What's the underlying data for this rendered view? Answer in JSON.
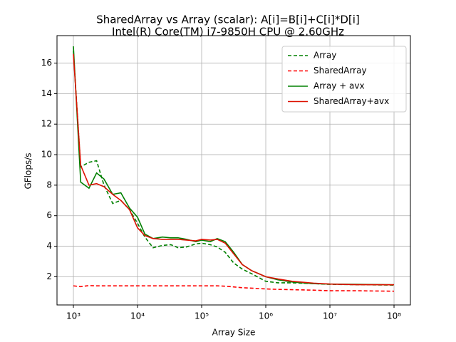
{
  "chart_data": {
    "type": "line",
    "title": "SharedArray vs Array (scalar): A[i]=B[i]+C[i]*D[i]",
    "subtitle": "Intel(R) Core(TM) i7-9850H CPU @ 2.60GHz",
    "x_label": "Array Size",
    "y_label": "GFlops/s",
    "x": [
      1000,
      1300,
      1750,
      2300,
      3000,
      4100,
      5500,
      7500,
      10000,
      13000,
      17500,
      24500,
      33000,
      43000,
      58000,
      81000,
      100000,
      136000,
      175000,
      233000,
      316000,
      430000,
      600000,
      1000000,
      1550000,
      2580000,
      5550000,
      10000000,
      25800000,
      100000000
    ],
    "series": [
      {
        "name": "Array",
        "color": "#008000",
        "dash": true,
        "values": [
          16.8,
          9.2,
          9.5,
          9.6,
          8.0,
          6.8,
          7.0,
          6.4,
          5.5,
          4.6,
          3.9,
          4.05,
          4.1,
          3.9,
          3.95,
          4.15,
          4.2,
          4.1,
          3.95,
          3.6,
          2.9,
          2.5,
          2.2,
          1.7,
          1.6,
          1.6,
          1.55,
          1.5,
          1.48,
          1.45
        ]
      },
      {
        "name": "SharedArray",
        "color": "#ff0000",
        "dash": true,
        "values": [
          1.4,
          1.35,
          1.42,
          1.4,
          1.4,
          1.4,
          1.4,
          1.4,
          1.4,
          1.4,
          1.4,
          1.4,
          1.4,
          1.4,
          1.4,
          1.4,
          1.4,
          1.4,
          1.4,
          1.38,
          1.33,
          1.28,
          1.25,
          1.2,
          1.17,
          1.15,
          1.12,
          1.08,
          1.08,
          1.05
        ]
      },
      {
        "name": "Array + avx",
        "color": "#008000",
        "dash": false,
        "values": [
          17.1,
          8.2,
          7.8,
          8.8,
          8.4,
          7.4,
          7.5,
          6.5,
          5.9,
          4.8,
          4.5,
          4.6,
          4.55,
          4.55,
          4.45,
          4.3,
          4.4,
          4.3,
          4.5,
          4.3,
          3.6,
          2.8,
          2.4,
          2.0,
          1.8,
          1.65,
          1.55,
          1.52,
          1.5,
          1.47
        ]
      },
      {
        "name": "SharedArray+avx",
        "color": "#dd1100",
        "dash": false,
        "values": [
          16.6,
          9.3,
          8.0,
          8.1,
          7.9,
          7.4,
          7.0,
          6.4,
          5.2,
          4.7,
          4.5,
          4.45,
          4.45,
          4.45,
          4.4,
          4.35,
          4.45,
          4.4,
          4.45,
          4.2,
          3.5,
          2.8,
          2.4,
          2.0,
          1.85,
          1.7,
          1.58,
          1.52,
          1.48,
          1.47
        ]
      }
    ],
    "x_log": true,
    "xlim": [
      555,
      180000000
    ],
    "xticks": [
      {
        "value": 1000,
        "label": "10³"
      },
      {
        "value": 10000,
        "label": "10⁴"
      },
      {
        "value": 100000,
        "label": "10⁵"
      },
      {
        "value": 1000000,
        "label": "10⁶"
      },
      {
        "value": 10000000,
        "label": "10⁷"
      },
      {
        "value": 100000000,
        "label": "10⁸"
      }
    ],
    "ylim": [
      0.15,
      17.8
    ],
    "yticks": [
      2,
      4,
      6,
      8,
      10,
      12,
      14,
      16
    ],
    "grid": true,
    "legend": "upper-right"
  }
}
